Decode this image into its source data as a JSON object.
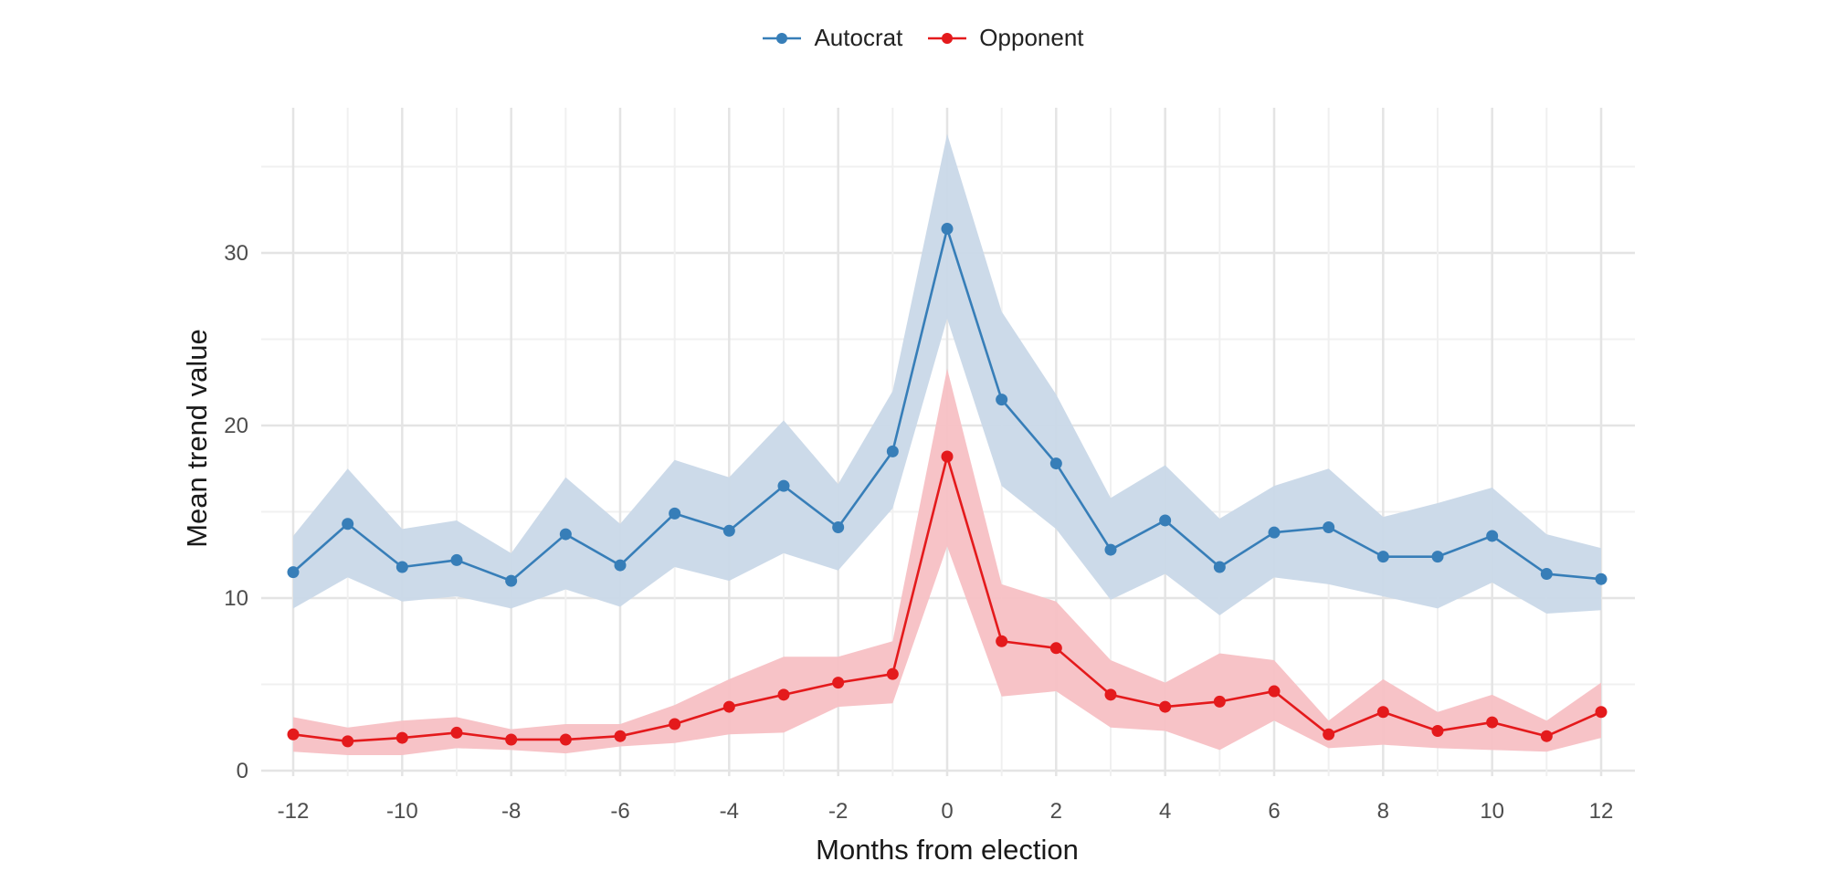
{
  "chart_data": {
    "type": "line",
    "title": "",
    "xlabel": "Months from election",
    "ylabel": "Mean trend value",
    "x": [
      -12,
      -11,
      -10,
      -9,
      -8,
      -7,
      -6,
      -5,
      -4,
      -3,
      -2,
      -1,
      0,
      1,
      2,
      3,
      4,
      5,
      6,
      7,
      8,
      9,
      10,
      11,
      12
    ],
    "xlim": [
      -12,
      12
    ],
    "ylim": [
      0,
      37
    ],
    "x_ticks": [
      -12,
      -10,
      -8,
      -6,
      -4,
      -2,
      0,
      2,
      4,
      6,
      8,
      10,
      12
    ],
    "y_ticks": [
      0,
      10,
      20,
      30
    ],
    "grid": true,
    "legend_position": "top",
    "series": [
      {
        "name": "Autocrat",
        "color": "#377eb8",
        "ribbon_color": "#c9d8e8",
        "values": [
          11.5,
          14.3,
          11.8,
          12.2,
          11.0,
          13.7,
          11.9,
          14.9,
          13.9,
          16.5,
          14.1,
          18.5,
          31.4,
          21.5,
          17.8,
          12.8,
          14.5,
          11.8,
          13.8,
          14.1,
          12.4,
          12.4,
          13.6,
          11.4,
          11.1
        ],
        "lower": [
          9.4,
          11.2,
          9.8,
          10.1,
          9.4,
          10.5,
          9.5,
          11.8,
          11.0,
          12.6,
          11.6,
          15.2,
          26.2,
          16.5,
          14.0,
          9.9,
          11.4,
          9.0,
          11.2,
          10.8,
          10.1,
          9.4,
          10.9,
          9.1,
          9.3
        ],
        "upper": [
          13.6,
          17.5,
          14.0,
          14.5,
          12.6,
          17.0,
          14.3,
          18.0,
          17.0,
          20.3,
          16.6,
          22.0,
          36.9,
          26.6,
          21.8,
          15.8,
          17.7,
          14.6,
          16.5,
          17.5,
          14.7,
          15.5,
          16.4,
          13.7,
          12.9
        ]
      },
      {
        "name": "Opponent",
        "color": "#e41a1c",
        "ribbon_color": "#f7c0c4",
        "values": [
          2.1,
          1.7,
          1.9,
          2.2,
          1.8,
          1.8,
          2.0,
          2.7,
          3.7,
          4.4,
          5.1,
          5.6,
          18.2,
          7.5,
          7.1,
          4.4,
          3.7,
          4.0,
          4.6,
          2.1,
          3.4,
          2.3,
          2.8,
          2.0,
          3.4
        ],
        "lower": [
          1.1,
          0.9,
          0.9,
          1.3,
          1.2,
          1.0,
          1.4,
          1.6,
          2.1,
          2.2,
          3.7,
          3.9,
          13.0,
          4.3,
          4.6,
          2.5,
          2.3,
          1.2,
          2.9,
          1.3,
          1.5,
          1.3,
          1.2,
          1.1,
          1.9
        ],
        "upper": [
          3.1,
          2.5,
          2.9,
          3.1,
          2.4,
          2.7,
          2.7,
          3.8,
          5.3,
          6.6,
          6.6,
          7.5,
          23.3,
          10.8,
          9.8,
          6.4,
          5.1,
          6.8,
          6.4,
          2.9,
          5.3,
          3.4,
          4.4,
          2.9,
          5.1
        ]
      }
    ]
  }
}
